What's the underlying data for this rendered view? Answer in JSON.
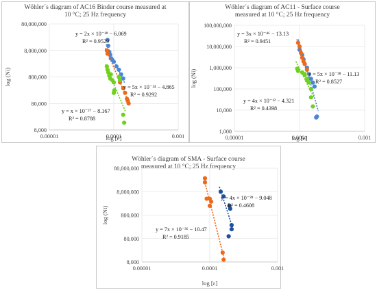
{
  "colors": {
    "blue": "#4a86d6",
    "orange": "#ec6a1c",
    "green": "#6fd11f",
    "darkblue": "#1f4fa0"
  },
  "chart_data": [
    {
      "type": "scatter",
      "title_lines": [
        "Wöhler´s diagram of AC16 Binder course measured at",
        "10 °C; 25 Hz frequency"
      ],
      "xlabel": "log [e]",
      "ylabel": "log (Ni)",
      "x_scale": "log",
      "y_scale": "log",
      "xlim": [
        1e-05,
        0.001
      ],
      "ylim": [
        8000,
        80000000
      ],
      "x_ticks": [
        "0.00001",
        "0.0001",
        "0.001"
      ],
      "y_ticks": [
        "80,000,000",
        "8,000,000",
        "800,000",
        "80,000",
        "8,000"
      ],
      "series": [
        {
          "color": "blue",
          "points": [
            [
              8e-05,
              20000000
            ],
            [
              8.2e-05,
              12000000
            ],
            [
              8.5e-05,
              7000000
            ],
            [
              8.8e-05,
              5500000
            ],
            [
              9e-05,
              4000000
            ],
            [
              9.5e-05,
              3500000
            ],
            [
              0.0001,
              3000000
            ],
            [
              0.00011,
              2000000
            ],
            [
              0.00012,
              1500000
            ],
            [
              0.00013,
              1000000
            ],
            [
              0.00014,
              700000
            ]
          ],
          "equation": "y = 2x × 10⁻¹⁸ − 6.069",
          "r2": "R² = 0.9529"
        },
        {
          "color": "orange",
          "points": [
            [
              7.8e-05,
              8000000
            ],
            [
              8e-05,
              6000000
            ],
            [
              0.000125,
              500000
            ],
            [
              0.00014,
              300000
            ],
            [
              0.00015,
              200000
            ],
            [
              0.00016,
              120000
            ],
            [
              0.000165,
              100000
            ],
            [
              0.00017,
              80000
            ]
          ],
          "equation": "y = 5x × 10⁻¹⁴ − 4.865",
          "r2": "R² = 0.9292"
        },
        {
          "color": "green",
          "points": [
            [
              7.8e-05,
              2000000
            ],
            [
              8e-05,
              1500000
            ],
            [
              8.2e-05,
              1200000
            ],
            [
              8.5e-05,
              900000
            ],
            [
              8.8e-05,
              700000
            ],
            [
              9e-05,
              1000000
            ],
            [
              9.5e-05,
              600000
            ],
            [
              0.0001,
              500000
            ],
            [
              0.000102,
              250000
            ],
            [
              0.0001,
              200000
            ],
            [
              0.00012,
              800000
            ],
            [
              0.000125,
              600000
            ],
            [
              0.00014,
              30000
            ],
            [
              0.000145,
              15000
            ]
          ],
          "equation": "y = x × 10⁻²⁷ − 8.167",
          "r2": "R² = 0.8788"
        }
      ]
    },
    {
      "type": "scatter",
      "title_lines": [
        "Wöhler´s diagram of AC11 -  Surface course",
        "measured at 10 °C; 25 Hz frequency"
      ],
      "xlabel": "log [e]",
      "ylabel": "log (Ni)",
      "x_scale": "log",
      "y_scale": "log",
      "xlim": [
        1e-05,
        0.001
      ],
      "ylim": [
        1000,
        100000000
      ],
      "x_ticks": [
        "0.00001",
        "0.0001",
        "0.001"
      ],
      "y_ticks": [
        "100,000,000",
        "10,000,000",
        "1,000,000",
        "100,000",
        "10,000",
        "1,000"
      ],
      "series": [
        {
          "color": "blue",
          "points": [
            [
              0.0001,
              7000000
            ],
            [
              0.00011,
              4000000
            ],
            [
              0.000115,
              2500000
            ],
            [
              0.00012,
              1500000
            ],
            [
              0.00013,
              1000000
            ],
            [
              0.00014,
              500000
            ],
            [
              0.00015,
              300000
            ],
            [
              0.00016,
              200000
            ],
            [
              0.00017,
              130000
            ],
            [
              0.00018,
              4500
            ],
            [
              0.000185,
              5000
            ]
          ],
          "equation": "y = 5x × 10⁻³⁸ − 11.13",
          "r2": "R² = 0.8527"
        },
        {
          "color": "orange",
          "points": [
            [
              9.5e-05,
              15000000
            ],
            [
              0.0001,
              10000000
            ],
            [
              0.000105,
              5000000
            ],
            [
              0.00011,
              3000000
            ],
            [
              0.000115,
              2000000
            ],
            [
              0.00012,
              1500000
            ],
            [
              0.00013,
              800000
            ]
          ],
          "equation": "y = 3x × 10⁻⁴⁶ − 13.13",
          "r2": "R² = 0.9451"
        },
        {
          "color": "green",
          "points": [
            [
              9.2e-05,
              900000
            ],
            [
              9.5e-05,
              700000
            ],
            [
              0.00011,
              600000
            ],
            [
              0.00012,
              450000
            ],
            [
              0.00013,
              300000
            ],
            [
              0.00012,
              500000
            ],
            [
              0.00013,
              250000
            ],
            [
              0.00014,
              200000
            ],
            [
              0.00015,
              100000
            ],
            [
              0.00015,
              40000
            ],
            [
              0.00016,
              15000
            ]
          ],
          "equation": "y = 4x × 10⁻¹² − 4.321",
          "r2": "R² = 0.4398"
        }
      ]
    },
    {
      "type": "scatter",
      "title_lines": [
        "Wöhler´s diagram of SMA -  Surface course",
        "measured at 10 °C; 25 Hz frequency"
      ],
      "xlabel": "log [ɛ]",
      "ylabel": "log (Ni)",
      "x_scale": "log",
      "y_scale": "log",
      "xlim": [
        1e-05,
        0.001
      ],
      "ylim": [
        8000,
        80000000
      ],
      "x_ticks": [
        "0.00001",
        "0.0001",
        "0.001"
      ],
      "y_ticks": [
        "80,000,000",
        "8,000,000",
        "800,000",
        "80,000",
        "8,000"
      ],
      "series": [
        {
          "color": "orange",
          "points": [
            [
              8.5e-05,
              30000000
            ],
            [
              8.5e-05,
              20000000
            ],
            [
              9e-05,
              4000000
            ],
            [
              0.0001,
              4000000
            ],
            [
              0.000105,
              3000000
            ],
            [
              0.0001,
              2000000
            ],
            [
              0.000155,
              20000
            ],
            [
              0.00016,
              10000
            ]
          ],
          "equation": "y = 7x × 10⁻³⁶ − 10.47",
          "r2": "R² = 0.9185"
        },
        {
          "color": "darkblue",
          "points": [
            [
              0.000145,
              8000000
            ],
            [
              0.00016,
              5000000
            ],
            [
              0.000195,
              2000000
            ],
            [
              0.0002,
              1500000
            ],
            [
              0.00021,
              300000
            ],
            [
              0.00021,
              200000
            ],
            [
              0.00019,
              100000
            ]
          ],
          "equation": "y = 4x × 10⁻²⁸ − 9.048",
          "r2": "R² = 0.4608"
        }
      ]
    }
  ]
}
